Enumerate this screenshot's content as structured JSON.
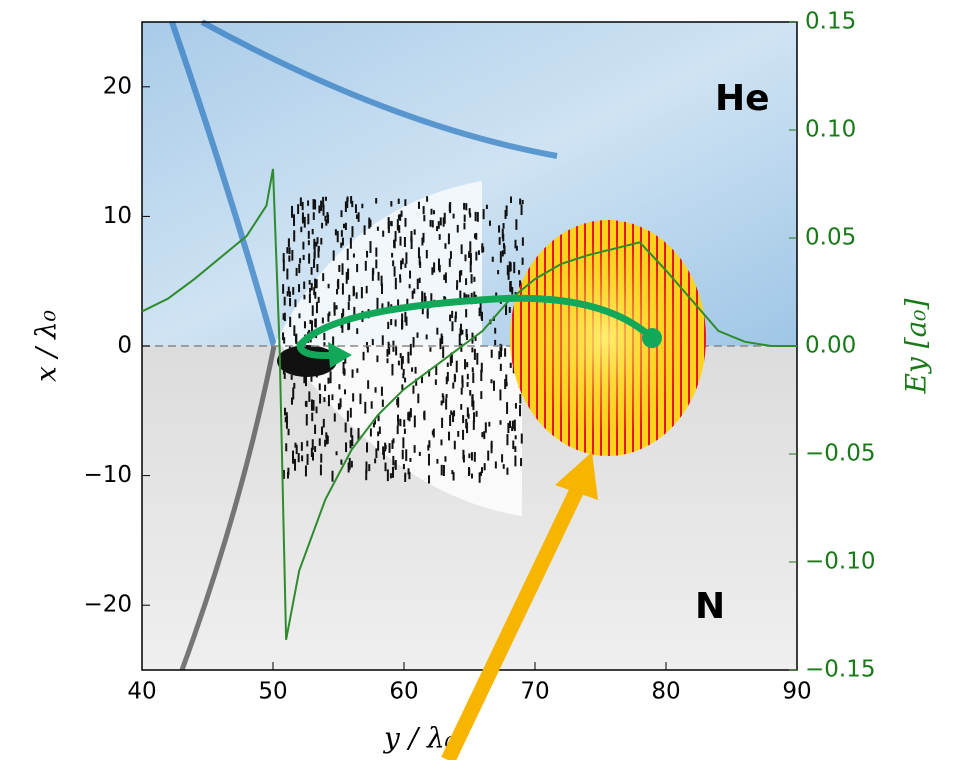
{
  "chart_data": {
    "type": "line",
    "xlabel": "y / λ₀",
    "ylabel": "x / λ₀",
    "y2label": "Ey [a₀]",
    "annotations": [
      "He",
      "N"
    ],
    "x": [
      40,
      42,
      44,
      46,
      48,
      49.5,
      50,
      50.5,
      51,
      52,
      54,
      56,
      58,
      60,
      62,
      64,
      66,
      68,
      70,
      72,
      74,
      76,
      78,
      80,
      82,
      84,
      86,
      88,
      90
    ],
    "series": [
      {
        "color": "#2e8b2e",
        "axis": "y2",
        "values": [
          0.016,
          0.022,
          0.031,
          0.041,
          0.051,
          0.065,
          0.082,
          0,
          -0.136,
          -0.104,
          -0.071,
          -0.048,
          -0.032,
          -0.02,
          -0.011,
          -0.002,
          0.007,
          0.021,
          0.031,
          0.038,
          0.042,
          0.045,
          0.048,
          0.035,
          0.021,
          0.007,
          0.002,
          0,
          0
        ]
      }
    ],
    "xlim": [
      40,
      90
    ],
    "xticks": [
      40,
      50,
      60,
      70,
      80,
      90
    ],
    "ylim": [
      -25,
      25
    ],
    "yticks": [
      {
        "value": -20,
        "label": "−20"
      },
      {
        "value": -10,
        "label": "−10"
      },
      0,
      10,
      20
    ],
    "y2lim": [
      -0.15,
      0.15
    ],
    "y2ticks": [
      {
        "value": -0.15,
        "label": "−0.15"
      },
      {
        "value": -0.1,
        "label": "−0.10"
      },
      {
        "value": -0.05,
        "label": "−0.05"
      },
      {
        "value": 0,
        "label": "0.00"
      },
      {
        "value": 0.05,
        "label": "0.05"
      },
      {
        "value": 0.1,
        "label": "0.10"
      },
      {
        "value": 0.15,
        "label": "0.15"
      }
    ],
    "grid": false
  }
}
